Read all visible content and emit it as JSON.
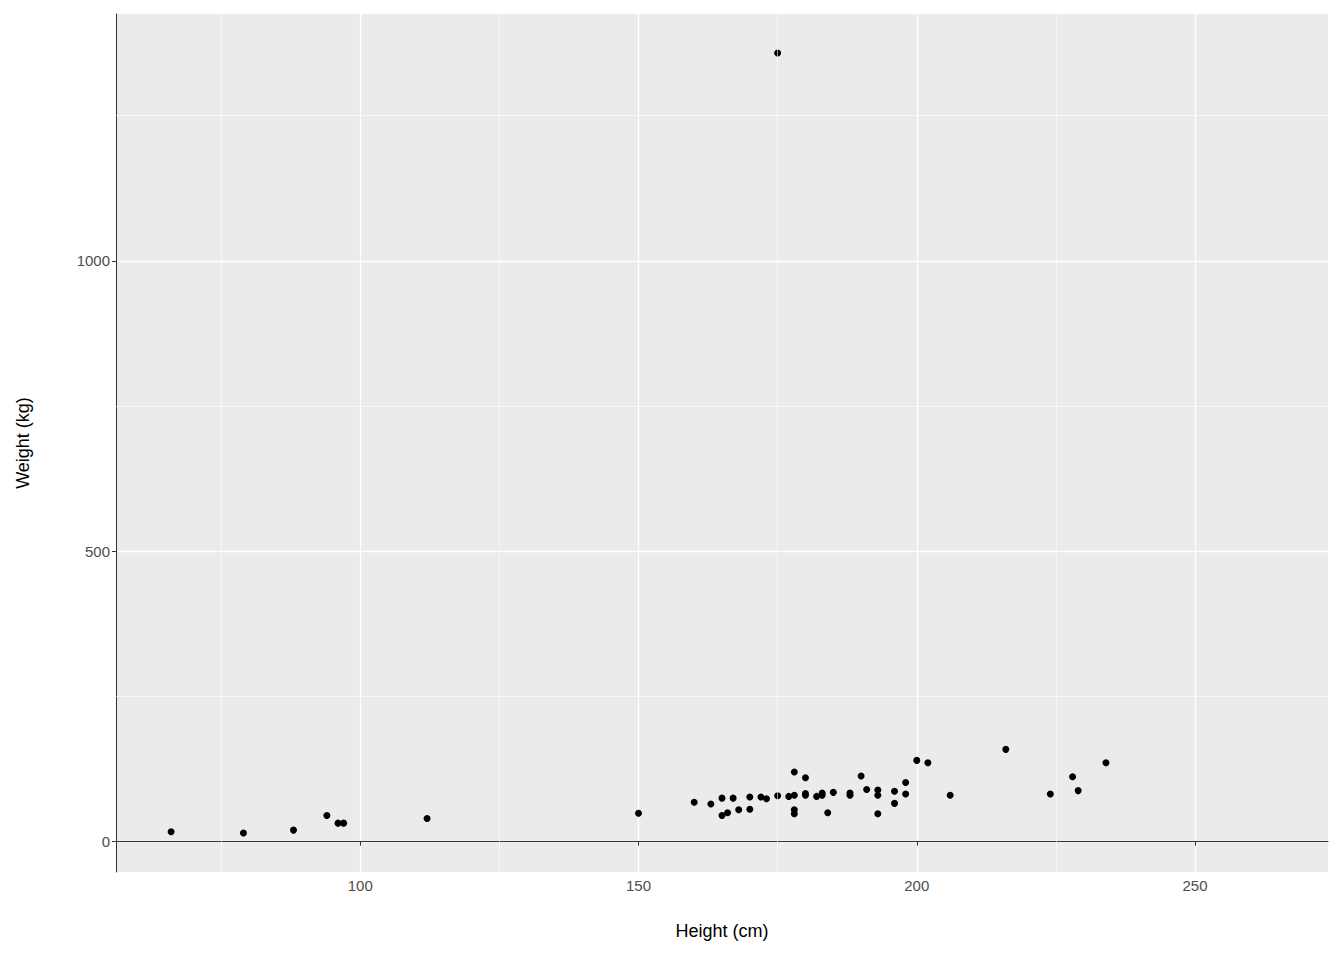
{
  "chart_data": {
    "type": "scatter",
    "x_label": "Height (cm)",
    "y_label": "Weight (kg)",
    "x": [
      66,
      79,
      88,
      94,
      96,
      97,
      112,
      150,
      160,
      163,
      165,
      165,
      166,
      167,
      168,
      170,
      170,
      172,
      173,
      175,
      175,
      177,
      178,
      178,
      178,
      178,
      180,
      180,
      180,
      182,
      183,
      183,
      184,
      185,
      188,
      188,
      190,
      191,
      193,
      193,
      193,
      196,
      196,
      198,
      198,
      200,
      202,
      206,
      216,
      224,
      228,
      229,
      234
    ],
    "values": [
      17,
      15,
      20,
      45,
      32,
      32,
      40,
      49,
      68,
      65,
      75,
      45,
      50,
      75,
      55,
      77,
      56,
      77,
      74,
      79,
      1358,
      78,
      120,
      80,
      55,
      48,
      110,
      80,
      83,
      78,
      80,
      84,
      50,
      85,
      84,
      80,
      113,
      90,
      89,
      80,
      48,
      66,
      87,
      102,
      82,
      140,
      136,
      80,
      159,
      82,
      112,
      88,
      136
    ],
    "color": "#000000",
    "xlim": [
      56.1,
      273.9
    ],
    "ylim": [
      -52.15,
      1425.15
    ],
    "xticks": [
      100,
      150,
      200,
      250
    ],
    "yticks": [
      0,
      500,
      1000
    ],
    "grid": true
  }
}
